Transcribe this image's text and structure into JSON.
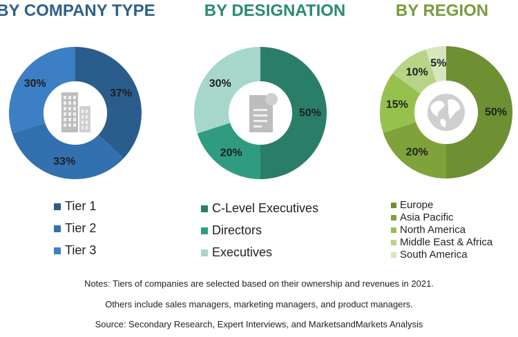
{
  "chart_data": [
    {
      "type": "pie",
      "title": "BY COMPANY TYPE",
      "title_color": "#2e5f8a",
      "categories": [
        "Tier 1",
        "Tier 2",
        "Tier 3"
      ],
      "values": [
        37,
        33,
        30
      ],
      "value_labels": [
        "37%",
        "33%",
        "30%"
      ],
      "colors": [
        "#2b5d8c",
        "#3270b0",
        "#3d7fc4"
      ],
      "center_icon": "buildings-icon",
      "legend_position": "bottom"
    },
    {
      "type": "pie",
      "title": "BY DESIGNATION",
      "title_color": "#2a8a72",
      "categories": [
        "C-Level Executives",
        "Directors",
        "Executives"
      ],
      "values": [
        50,
        20,
        30
      ],
      "value_labels": [
        "50%",
        "20%",
        "30%"
      ],
      "colors": [
        "#2a7e68",
        "#2f9c82",
        "#a6d7ca"
      ],
      "center_icon": "document-icon",
      "legend_position": "bottom"
    },
    {
      "type": "pie",
      "title": "BY REGION",
      "title_color": "#7a9a3c",
      "categories": [
        "Europe",
        "Asia Pacific",
        "North America",
        "Middle East & Africa",
        "South America"
      ],
      "values": [
        50,
        20,
        15,
        10,
        5
      ],
      "value_labels": [
        "50%",
        "20%",
        "15%",
        "10%",
        "5%"
      ],
      "colors": [
        "#6f8f33",
        "#7fa33a",
        "#97c14e",
        "#b7d488",
        "#d6e6bd"
      ],
      "center_icon": "globe-icon",
      "legend_position": "bottom"
    }
  ],
  "notes": [
    "Notes: Tiers of companies are selected based on their ownership and revenues in 2021.",
    "Others include sales managers, marketing managers, and product managers.",
    "Source: Secondary Research, Expert Interviews, and MarketsandMarkets Analysis"
  ]
}
